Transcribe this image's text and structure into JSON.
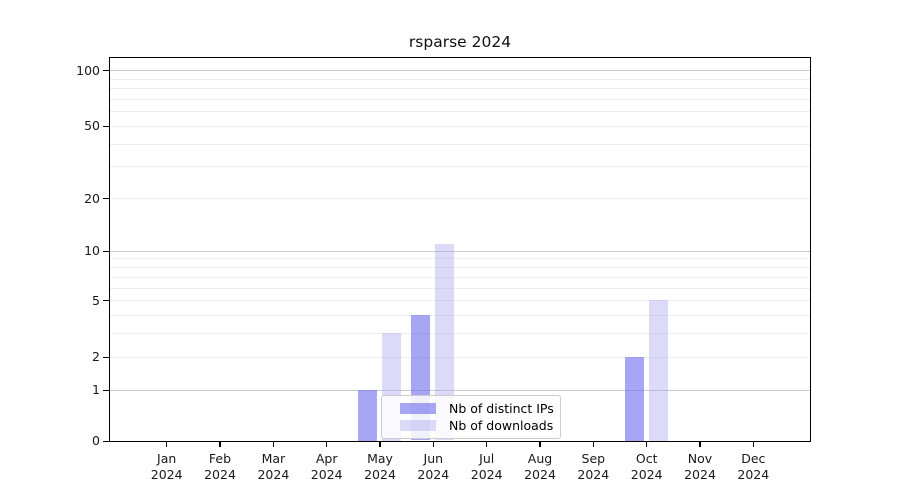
{
  "chart_data": {
    "type": "bar",
    "title": "rsparse 2024",
    "categories": [
      "Jan",
      "Feb",
      "Mar",
      "Apr",
      "May",
      "Jun",
      "Jul",
      "Aug",
      "Sep",
      "Oct",
      "Nov",
      "Dec"
    ],
    "year_label": "2024",
    "series": [
      {
        "name": "Nb of distinct IPs",
        "values": [
          0,
          0,
          0,
          0,
          1,
          4,
          0,
          0,
          0,
          2,
          0,
          0
        ],
        "color": "#7070ee",
        "alpha": 0.62
      },
      {
        "name": "Nb of downloads",
        "values": [
          0,
          0,
          0,
          0,
          3,
          11,
          0,
          0,
          0,
          5,
          0,
          0
        ],
        "color": "#aaaaf0",
        "alpha": 0.42
      }
    ],
    "yscale": "log1p",
    "ylim": [
      0,
      117
    ],
    "y_ticks": [
      0,
      1,
      2,
      5,
      10,
      20,
      50,
      100
    ],
    "grid_major": [
      1,
      10,
      100
    ],
    "grid_minor": [
      2,
      3,
      4,
      5,
      6,
      7,
      8,
      9,
      20,
      30,
      40,
      50,
      60,
      70,
      80,
      90
    ],
    "xlabel": "",
    "ylabel": "",
    "legend": {
      "labels": [
        "Nb of distinct IPs",
        "Nb of downloads"
      ],
      "position": "lower center"
    }
  },
  "colors": {
    "grid_major": "#c9c9c9",
    "grid_minor": "#ededed",
    "axis": "#000000",
    "text": "#1a1a1a",
    "legend_border": "#cccccc",
    "legend_bg": "#ffffff"
  }
}
